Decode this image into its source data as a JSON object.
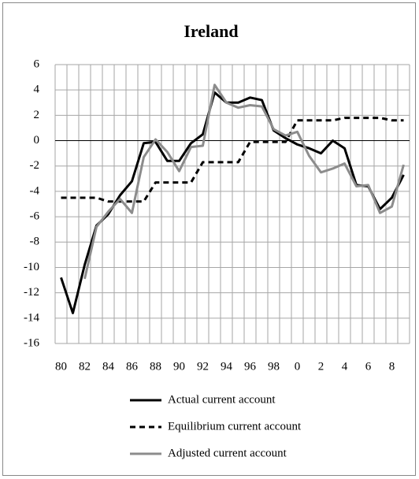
{
  "chart_data": {
    "type": "line",
    "title": "Ireland",
    "categories": [
      "80",
      null,
      "82",
      null,
      "84",
      null,
      "86",
      null,
      "88",
      null,
      "90",
      null,
      "92",
      null,
      "94",
      null,
      "96",
      null,
      "98",
      null,
      "0",
      null,
      "2",
      null,
      "4",
      null,
      "6",
      null,
      "8",
      null
    ],
    "series": [
      {
        "name": "Actual current account",
        "color": "#000000",
        "dash": "solid",
        "values": [
          -10.8,
          -13.6,
          -9.8,
          -6.7,
          -5.8,
          -4.3,
          -3.2,
          -0.2,
          -0.1,
          -1.6,
          -1.6,
          -0.2,
          0.5,
          3.8,
          3.0,
          3.0,
          3.4,
          3.2,
          0.8,
          0.2,
          -0.3,
          -0.6,
          -1.0,
          0.0,
          -0.6,
          -3.5,
          -3.6,
          -5.4,
          -4.5,
          -2.7
        ]
      },
      {
        "name": "Equilibrium current account",
        "color": "#000000",
        "dash": "dashed",
        "values": [
          -4.5,
          -4.5,
          -4.5,
          -4.5,
          -4.8,
          -4.8,
          -4.8,
          -4.8,
          -3.3,
          -3.3,
          -3.3,
          -3.3,
          -1.7,
          -1.7,
          -1.7,
          -1.7,
          -0.1,
          -0.1,
          -0.1,
          -0.1,
          1.6,
          1.6,
          1.6,
          1.6,
          1.8,
          1.8,
          1.8,
          1.8,
          1.6,
          1.6
        ]
      },
      {
        "name": "Adjusted current account",
        "color": "#8c8c8c",
        "dash": "solid",
        "values": [
          null,
          null,
          -10.9,
          -6.8,
          -5.6,
          -4.6,
          -5.7,
          -1.3,
          0.1,
          -0.9,
          -2.4,
          -0.5,
          -0.4,
          4.4,
          3.0,
          2.6,
          2.8,
          2.7,
          0.9,
          0.4,
          0.7,
          -1.2,
          -2.5,
          -2.2,
          -1.8,
          -3.6,
          -3.5,
          -5.7,
          -5.2,
          -1.9
        ]
      }
    ],
    "ylim": [
      -16,
      6
    ],
    "yticks": [
      -16,
      -14,
      -12,
      -10,
      -8,
      -6,
      -4,
      -2,
      0,
      2,
      4,
      6
    ],
    "grid": true,
    "legend": "bottom"
  }
}
